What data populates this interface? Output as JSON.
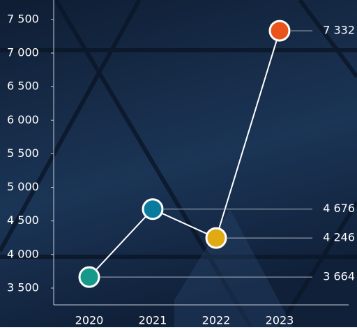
{
  "chart_data": {
    "type": "line",
    "categories": [
      "2020",
      "2021",
      "2022",
      "2023"
    ],
    "series": [
      {
        "color": "#ffffff",
        "point_colors": [
          "#17998a",
          "#0a7b9c",
          "#e0aa12",
          "#e8541a"
        ],
        "values": [
          3664,
          4676,
          4246,
          7332
        ],
        "value_labels": [
          "3 664",
          "4 676",
          "4 246",
          "7 332"
        ]
      }
    ],
    "ylim": [
      3250,
      7790
    ],
    "yticks": [
      {
        "value": 3500,
        "label": "3 500"
      },
      {
        "value": 4000,
        "label": "4 000"
      },
      {
        "value": 4500,
        "label": "4 500"
      },
      {
        "value": 5000,
        "label": "5 000"
      },
      {
        "value": 5500,
        "label": "5 500"
      },
      {
        "value": 6000,
        "label": "6 000"
      },
      {
        "value": 6500,
        "label": "6 500"
      },
      {
        "value": 7000,
        "label": "7 000"
      },
      {
        "value": 7500,
        "label": "7 500"
      }
    ]
  }
}
